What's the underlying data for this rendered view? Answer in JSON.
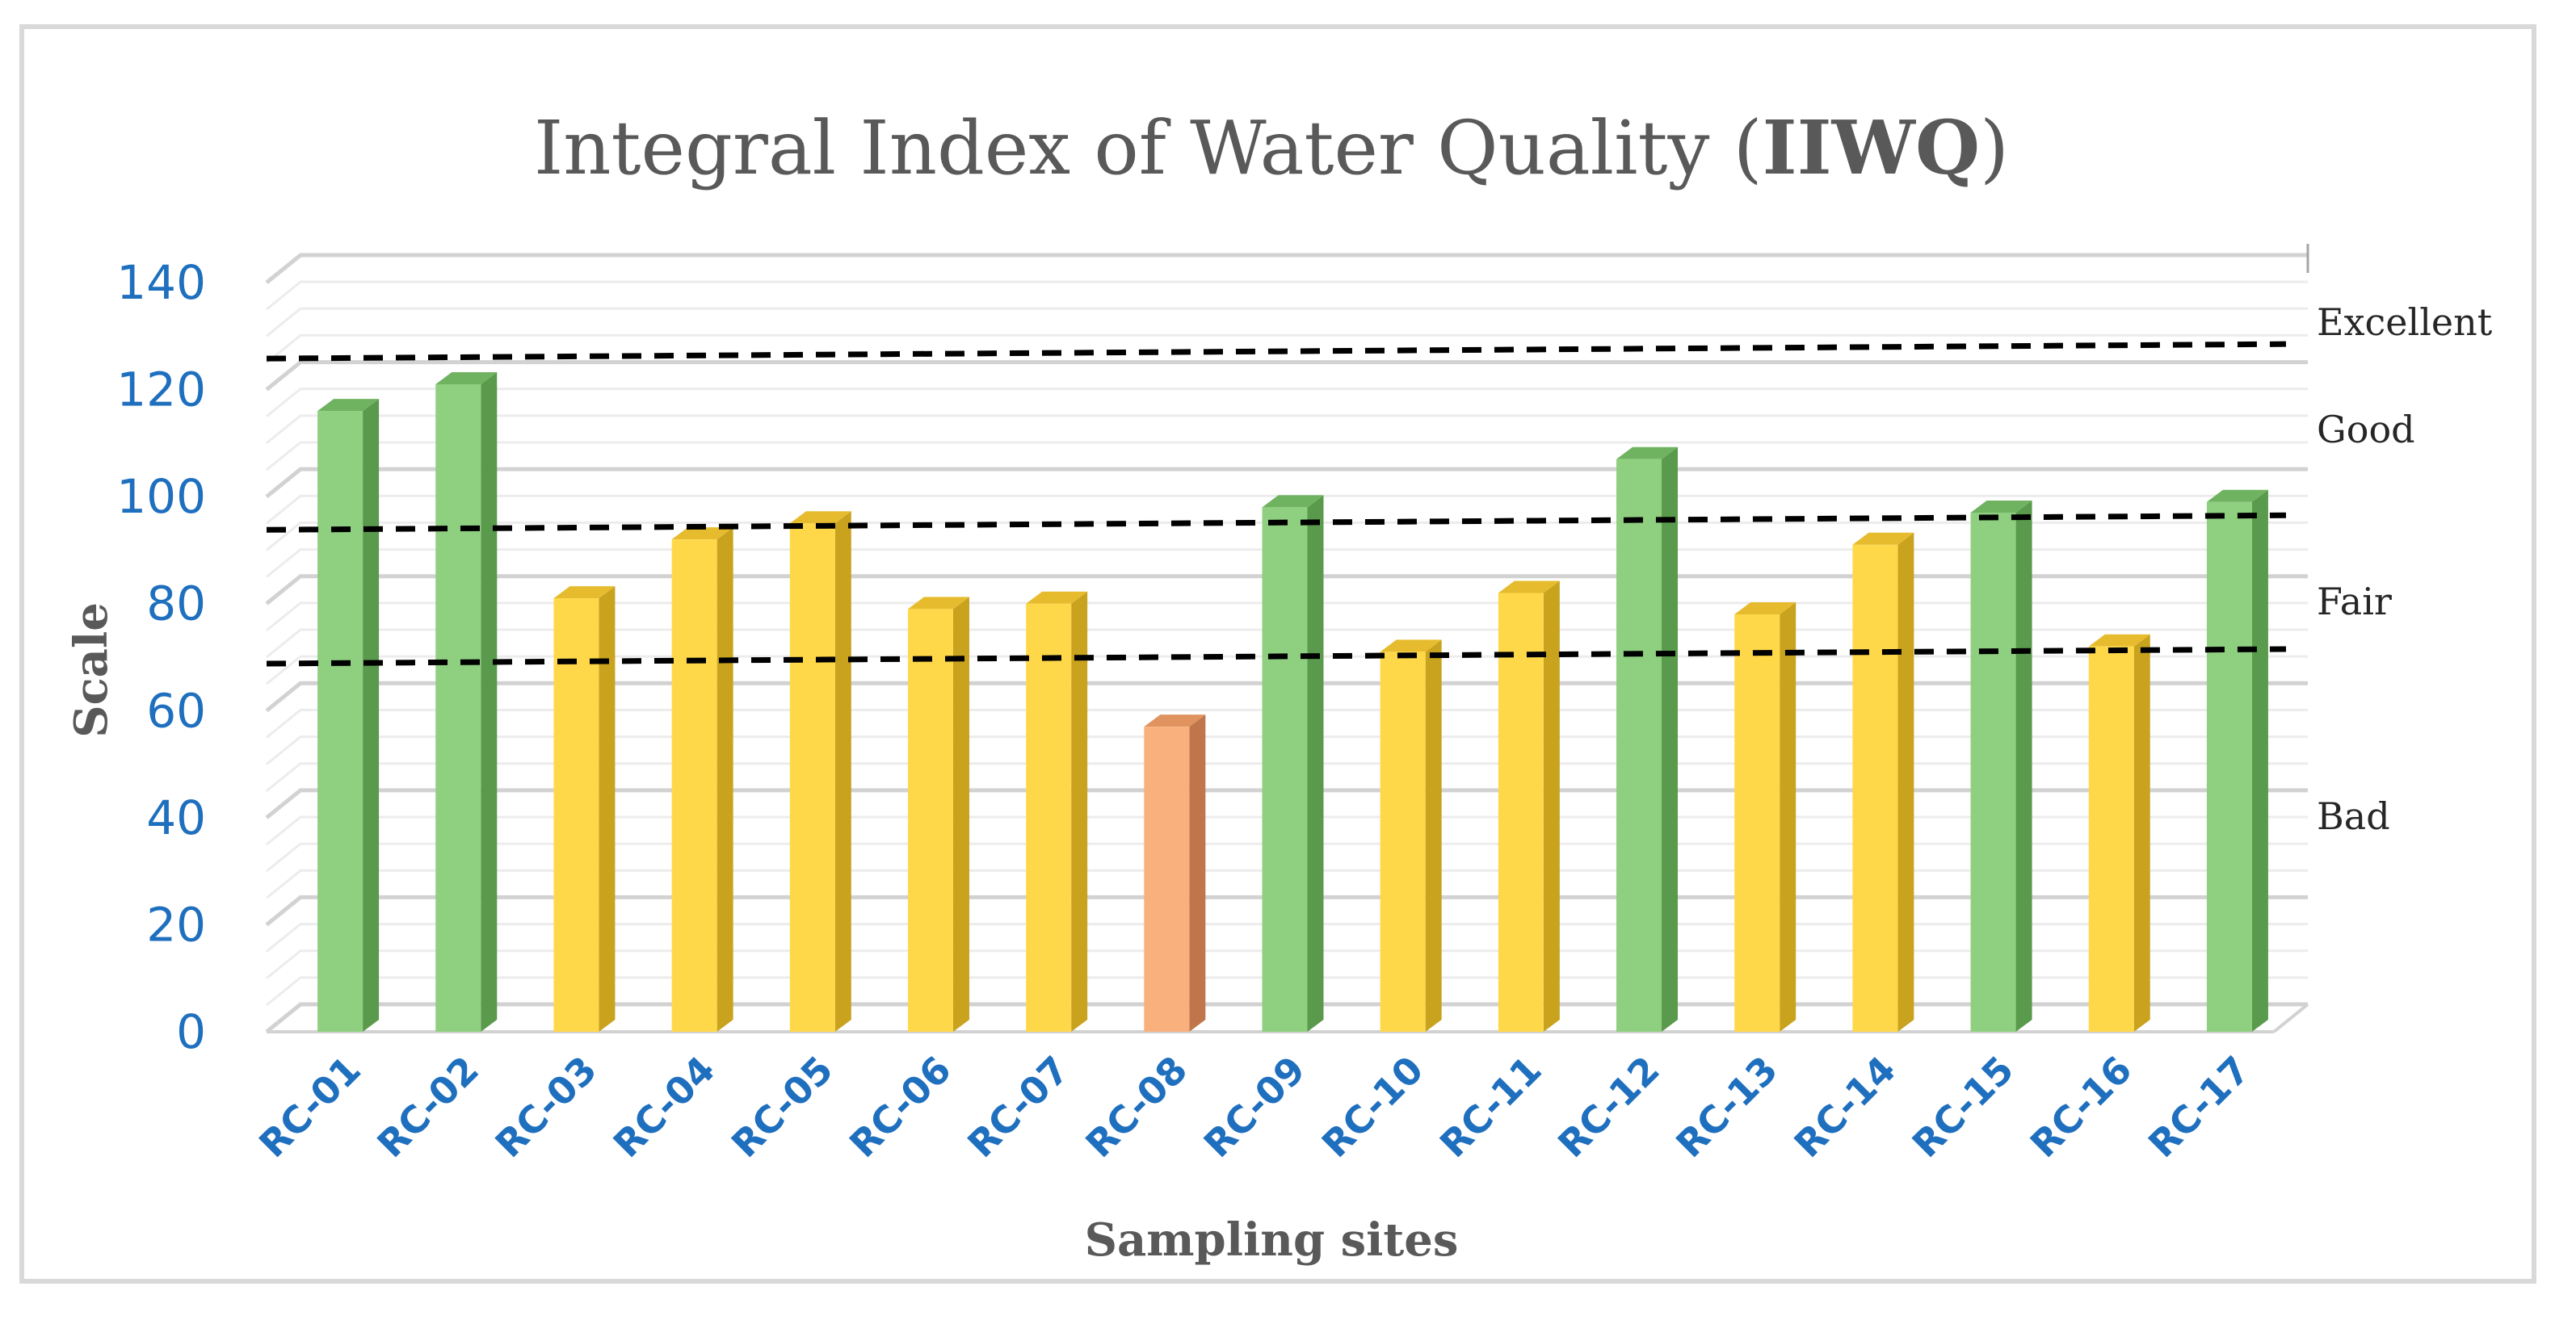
{
  "chart_data": {
    "type": "bar",
    "title": "Integral Index of Water Quality (",
    "title_bold": "IIWQ",
    "title_close": ")",
    "xlabel": "Sampling sites",
    "ylabel": "Scale",
    "ylim": [
      0,
      140
    ],
    "yticks": [
      0,
      20,
      40,
      60,
      80,
      100,
      120,
      140
    ],
    "grid": true,
    "categories": [
      "RC-01",
      "RC-02",
      "RC-03",
      "RC-04",
      "RC-05",
      "RC-06",
      "RC-07",
      "RC-08",
      "RC-09",
      "RC-10",
      "RC-11",
      "RC-12",
      "RC-13",
      "RC-14",
      "RC-15",
      "RC-16",
      "RC-17"
    ],
    "values": [
      116,
      121,
      81,
      92,
      95,
      79,
      80,
      57,
      98,
      71,
      82,
      107,
      78,
      91,
      97,
      72,
      99
    ],
    "classes": [
      "Good",
      "Good",
      "Fair",
      "Fair",
      "Fair",
      "Fair",
      "Fair",
      "Bad",
      "Good",
      "Fair",
      "Fair",
      "Good",
      "Fair",
      "Fair",
      "Good",
      "Fair",
      "Good"
    ],
    "class_colors": {
      "Good": {
        "front": "#8fcf80",
        "side": "#5a9a4c",
        "top": "#6fb360"
      },
      "Fair": {
        "front": "#ffd84a",
        "side": "#c9a21e",
        "top": "#e6bc2e"
      },
      "Bad": {
        "front": "#f9b07c",
        "side": "#c0764a",
        "top": "#e0935f"
      }
    },
    "thresholds": [
      70,
      95,
      127
    ],
    "zones": [
      "Excellent",
      "Good",
      "Fair",
      "Bad"
    ]
  }
}
